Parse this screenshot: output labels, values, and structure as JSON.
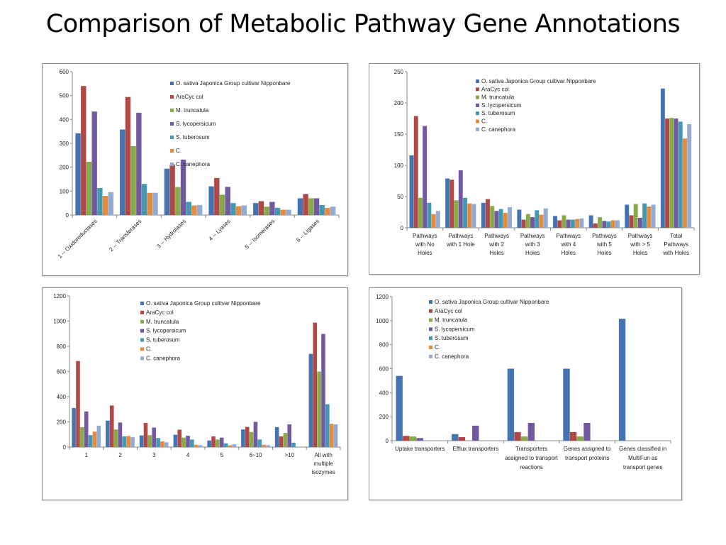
{
  "page": {
    "title": "Comparison of Metabolic Pathway  Gene Annotations"
  },
  "colors": [
    "#4473b1",
    "#b04845",
    "#88aa4a",
    "#7158a0",
    "#4398b2",
    "#e58b3f",
    "#93aad3"
  ],
  "series_names": [
    "O. sativa Japonica Group cultivar Nipponbare",
    "AraCyc col",
    "M. truncatula",
    "S. lycopersicum",
    "S. tuberosum",
    "C.",
    "C. canephora"
  ],
  "chart_data": [
    {
      "type": "bar",
      "categories": [
        "1 -- Oxidoreductases",
        "2 -- Transferases",
        "3 -- Hydrolases",
        "4 -- Lyases",
        "5 -- Isomerases",
        "6 -- Ligases"
      ],
      "ylim": [
        0,
        600
      ],
      "yticks": [
        "0",
        "100",
        "200",
        "300",
        "400",
        "500",
        "600"
      ],
      "legend": "top-right",
      "series": [
        {
          "name": "O. sativa Japonica Group cultivar Nipponbare",
          "values": [
            342,
            358,
            194,
            120,
            50,
            70
          ]
        },
        {
          "name": "AraCyc col",
          "values": [
            540,
            494,
            212,
            155,
            58,
            88
          ]
        },
        {
          "name": "M. truncatula",
          "values": [
            223,
            288,
            117,
            85,
            35,
            70
          ]
        },
        {
          "name": "S. lycopersicum",
          "values": [
            433,
            428,
            232,
            118,
            55,
            70
          ]
        },
        {
          "name": "S. tuberosum",
          "values": [
            113,
            130,
            55,
            50,
            30,
            42
          ]
        },
        {
          "name": "C.",
          "values": [
            80,
            93,
            40,
            37,
            22,
            30
          ]
        },
        {
          "name": "C. canephora",
          "values": [
            96,
            93,
            42,
            40,
            22,
            35
          ]
        }
      ]
    },
    {
      "type": "bar",
      "categories": [
        "Pathways with No Holes",
        "Pathways with 1 Hole",
        "Pathways with 2 Holes",
        "Pathways with 3 Holes",
        "Pathways with 4 Holes",
        "Pathways with 5 Holes",
        "Pathways with > 5 Holes",
        "Total Pathways with Holes"
      ],
      "ylim": [
        0,
        250
      ],
      "yticks": [
        "0",
        "50",
        "100",
        "150",
        "200",
        "250"
      ],
      "legend": "top-left",
      "series": [
        {
          "name": "O. sativa Japonica Group cultivar Nipponbare",
          "values": [
            116,
            79,
            40,
            29,
            19,
            20,
            37,
            223
          ]
        },
        {
          "name": "AraCyc col",
          "values": [
            179,
            77,
            46,
            13,
            12,
            7,
            20,
            175
          ]
        },
        {
          "name": "M. truncatula",
          "values": [
            48,
            44,
            35,
            22,
            20,
            17,
            38,
            176
          ]
        },
        {
          "name": "S. lycopersicum",
          "values": [
            163,
            92,
            27,
            17,
            13,
            11,
            16,
            175
          ]
        },
        {
          "name": "S. tuberosum",
          "values": [
            40,
            48,
            30,
            28,
            13,
            10,
            39,
            170
          ]
        },
        {
          "name": "C.",
          "values": [
            22,
            39,
            24,
            21,
            14,
            12,
            34,
            143
          ]
        },
        {
          "name": "C. canephora",
          "values": [
            27,
            38,
            33,
            31,
            15,
            12,
            37,
            166
          ]
        }
      ]
    },
    {
      "type": "bar",
      "categories": [
        "1",
        "2",
        "3",
        "4",
        "5",
        "6~10",
        ">10",
        "All with multiple isozymes"
      ],
      "ylim": [
        0,
        1200
      ],
      "yticks": [
        "0",
        "200",
        "400",
        "600",
        "800",
        "1000",
        "1200"
      ],
      "legend": "top-center",
      "series": [
        {
          "name": "O. sativa Japonica Group cultivar Nipponbare",
          "values": [
            310,
            210,
            92,
            98,
            52,
            140,
            158,
            740
          ]
        },
        {
          "name": "AraCyc col",
          "values": [
            683,
            330,
            192,
            138,
            85,
            160,
            85,
            988
          ]
        },
        {
          "name": "M. truncatula",
          "values": [
            158,
            140,
            95,
            75,
            60,
            120,
            112,
            600
          ]
        },
        {
          "name": "S. lycopersicum",
          "values": [
            283,
            195,
            155,
            90,
            75,
            200,
            180,
            898
          ]
        },
        {
          "name": "S. tuberosum",
          "values": [
            95,
            85,
            72,
            60,
            30,
            60,
            35,
            340
          ]
        },
        {
          "name": "C.",
          "values": [
            123,
            88,
            45,
            18,
            15,
            18,
            0,
            185
          ]
        },
        {
          "name": "C. canephora",
          "values": [
            170,
            78,
            38,
            15,
            22,
            15,
            0,
            180
          ]
        }
      ]
    },
    {
      "type": "bar",
      "categories": [
        "Uptake transporters",
        "Efflux transporters",
        "Transporters assigned to transport reactions",
        "Genes assigned to transport proteins",
        "Genes classified in MultiFun as transport genes"
      ],
      "ylim": [
        0,
        1200
      ],
      "yticks": [
        "0",
        "200",
        "400",
        "600",
        "800",
        "1000",
        "1200"
      ],
      "legend": "top-left",
      "series": [
        {
          "name": "O. sativa Japonica Group cultivar Nipponbare",
          "values": [
            540,
            55,
            600,
            600,
            1015
          ]
        },
        {
          "name": "AraCyc col",
          "values": [
            40,
            30,
            72,
            72,
            0
          ]
        },
        {
          "name": "M. truncatula",
          "values": [
            35,
            0,
            35,
            35,
            0
          ]
        },
        {
          "name": "S. lycopersicum",
          "values": [
            22,
            125,
            148,
            148,
            0
          ]
        },
        {
          "name": "S. tuberosum",
          "values": [
            0,
            0,
            0,
            0,
            0
          ]
        },
        {
          "name": "C.",
          "values": [
            0,
            0,
            0,
            0,
            0
          ]
        },
        {
          "name": "C. canephora",
          "values": [
            0,
            0,
            0,
            0,
            0
          ]
        }
      ]
    }
  ]
}
